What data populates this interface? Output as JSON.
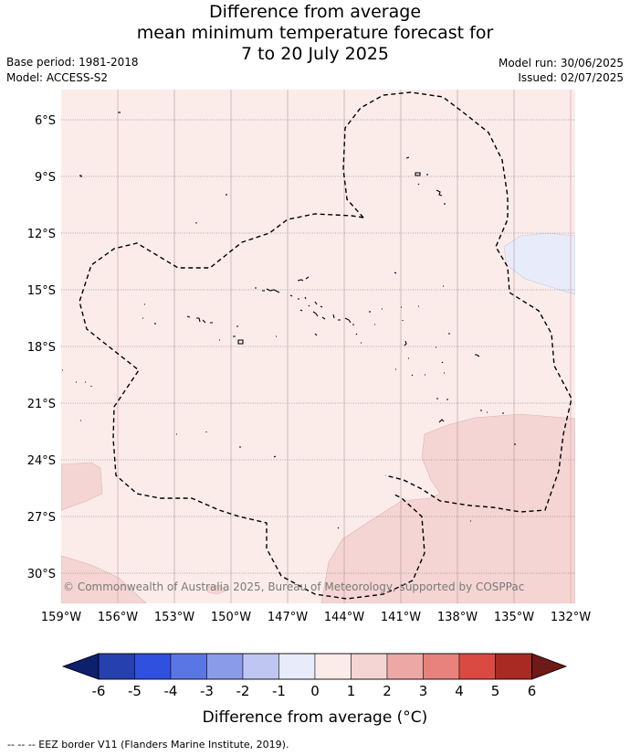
{
  "title": {
    "line1": "Difference from average",
    "line2": "mean minimum temperature forecast for",
    "line3": "7 to 20 July 2025"
  },
  "meta": {
    "base_period": "Base period: 1981-2018",
    "model": "Model: ACCESS-S2",
    "model_run": "Model run: 30/06/2025",
    "issued": "Issued: 02/07/2025"
  },
  "map": {
    "lon_labels": [
      "159°W",
      "156°W",
      "153°W",
      "150°W",
      "147°W",
      "144°W",
      "141°W",
      "138°W",
      "135°W",
      "132°W"
    ],
    "lat_labels": [
      "6°S",
      "9°S",
      "12°S",
      "15°S",
      "18°S",
      "21°S",
      "24°S",
      "27°S",
      "30°S"
    ],
    "credit": "© Commonwealth of Australia 2025, Bureau of Meteorology, supported by COSPPac",
    "colors": {
      "background_anomaly": "#fbecea",
      "warm_anomaly": "#f4d5d3",
      "cool_anomaly": "#e8ebfa"
    }
  },
  "colorbar": {
    "labels": [
      "-6",
      "-5",
      "-4",
      "-3",
      "-2",
      "-1",
      "0",
      "1",
      "2",
      "3",
      "4",
      "5",
      "6"
    ],
    "colors": [
      "#0e1f6b",
      "#2640b0",
      "#3050e0",
      "#5a75e4",
      "#8a9bea",
      "#c0c6f2",
      "#e8ebfa",
      "#fbecea",
      "#f4d5d3",
      "#eba8a5",
      "#e7827c",
      "#da4a43",
      "#a92a22",
      "#6e1a17"
    ],
    "title": "Difference from average (°C)"
  },
  "footer": "-- -- -- EEZ border V11 (Flanders Marine Institute, 2019)."
}
